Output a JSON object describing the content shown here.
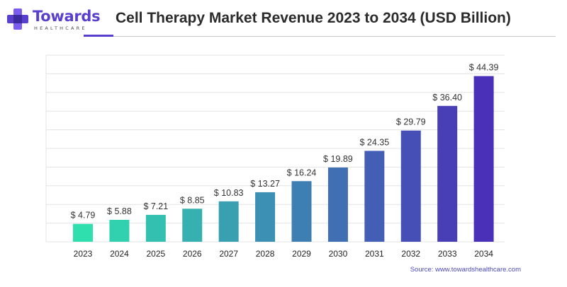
{
  "logo": {
    "name": "Towards",
    "tagline": "HEALTHCARE"
  },
  "colors": {
    "bar_start": "#2fe0ae",
    "bar_end": "#4a2fb8",
    "brand": "#5a3fcf",
    "grid": "#e3e3e3",
    "text": "#333333"
  },
  "source": "Source: www.towardshealthcare.com",
  "chart_data": {
    "type": "bar",
    "title": "Cell Therapy Market Revenue 2023 to 2034 (USD Billion)",
    "xlabel": "",
    "ylabel": "",
    "categories": [
      "2023",
      "2024",
      "2025",
      "2026",
      "2027",
      "2028",
      "2029",
      "2030",
      "2031",
      "2032",
      "2033",
      "2034"
    ],
    "values": [
      4.79,
      5.88,
      7.21,
      8.85,
      10.83,
      13.27,
      16.24,
      19.89,
      24.35,
      29.79,
      36.4,
      44.39
    ],
    "value_labels": [
      "$ 4.79",
      "$ 5.88",
      "$ 7.21",
      "$ 8.85",
      "$ 10.83",
      "$ 13.27",
      "$ 16.24",
      "$ 19.89",
      "$ 24.35",
      "$ 29.79",
      "$ 36.40",
      "$ 44.39"
    ],
    "ylim": [
      0,
      50
    ],
    "grid": true,
    "legend": "none"
  }
}
